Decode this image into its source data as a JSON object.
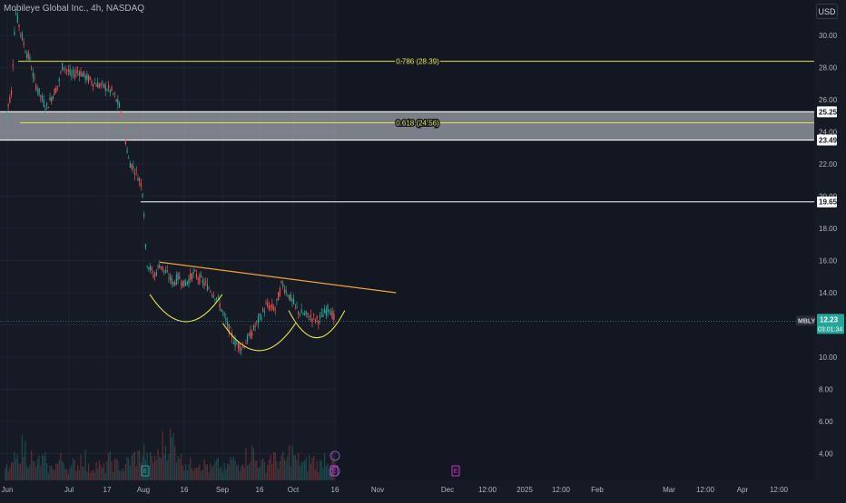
{
  "header": {
    "title": "Mobileye Global Inc., 4h, NASDAQ",
    "currency": "USD"
  },
  "theme": {
    "background": "#161a25",
    "grid": "#1f2330",
    "axis_text": "#b2b5be",
    "up": "#26a69a",
    "down": "#ef5350",
    "fib": "#e6e34a",
    "resistance": "#ffffff",
    "trendline": "#f0a43a",
    "pattern_arc": "#e6e34a",
    "event_marker": "#cc33cc",
    "price_badge": "#26a69a"
  },
  "chart_data": {
    "type": "candlestick",
    "ylim": [
      3,
      33
    ],
    "y_ticks": [
      4,
      6,
      8,
      10,
      12,
      14,
      16,
      18,
      20,
      22,
      24,
      26,
      28,
      30
    ],
    "y_tick_labels": [
      "4.00",
      "6.00",
      "8.00",
      "10.00",
      "12.00",
      "14.00",
      "16.00",
      "18.00",
      "20.00",
      "22.00",
      "24.00",
      "26.00",
      "28.00",
      "30.00"
    ],
    "x_labels": [
      "Jun",
      "Jul",
      "17",
      "Aug",
      "16",
      "Sep",
      "16",
      "Oct",
      "16",
      "Nov",
      "Dec",
      "12:00",
      "2025",
      "12:00",
      "Feb",
      "Mar",
      "12:00",
      "Apr",
      "12:00"
    ],
    "price_path": [
      {
        "date": "2024-05-31",
        "price": 24.8
      },
      {
        "date": "2024-06-03",
        "price": 26.5
      },
      {
        "date": "2024-06-05",
        "price": 31.5
      },
      {
        "date": "2024-06-07",
        "price": 30.5
      },
      {
        "date": "2024-06-10",
        "price": 29.0
      },
      {
        "date": "2024-06-12",
        "price": 28.5
      },
      {
        "date": "2024-06-14",
        "price": 27.2
      },
      {
        "date": "2024-06-18",
        "price": 26.0
      },
      {
        "date": "2024-06-20",
        "price": 25.5
      },
      {
        "date": "2024-06-24",
        "price": 26.5
      },
      {
        "date": "2024-06-26",
        "price": 27.0
      },
      {
        "date": "2024-06-28",
        "price": 28.2
      },
      {
        "date": "2024-07-02",
        "price": 27.5
      },
      {
        "date": "2024-07-05",
        "price": 27.8
      },
      {
        "date": "2024-07-09",
        "price": 27.3
      },
      {
        "date": "2024-07-12",
        "price": 27.0
      },
      {
        "date": "2024-07-16",
        "price": 26.8
      },
      {
        "date": "2024-07-19",
        "price": 26.5
      },
      {
        "date": "2024-07-22",
        "price": 25.6
      },
      {
        "date": "2024-07-24",
        "price": 24.0
      },
      {
        "date": "2024-07-26",
        "price": 22.2
      },
      {
        "date": "2024-07-29",
        "price": 21.5
      },
      {
        "date": "2024-07-31",
        "price": 20.8
      },
      {
        "date": "2024-08-01",
        "price": 20.0
      },
      {
        "date": "2024-08-02",
        "price": 16.0
      },
      {
        "date": "2024-08-05",
        "price": 15.0
      },
      {
        "date": "2024-08-07",
        "price": 15.8
      },
      {
        "date": "2024-08-09",
        "price": 15.3
      },
      {
        "date": "2024-08-12",
        "price": 14.6
      },
      {
        "date": "2024-08-14",
        "price": 15.0
      },
      {
        "date": "2024-08-16",
        "price": 14.5
      },
      {
        "date": "2024-08-20",
        "price": 15.2
      },
      {
        "date": "2024-08-23",
        "price": 14.8
      },
      {
        "date": "2024-08-27",
        "price": 14.2
      },
      {
        "date": "2024-08-30",
        "price": 13.6
      },
      {
        "date": "2024-09-03",
        "price": 12.0
      },
      {
        "date": "2024-09-06",
        "price": 10.9
      },
      {
        "date": "2024-09-09",
        "price": 10.6
      },
      {
        "date": "2024-09-12",
        "price": 11.3
      },
      {
        "date": "2024-09-16",
        "price": 12.4
      },
      {
        "date": "2024-09-19",
        "price": 13.2
      },
      {
        "date": "2024-09-23",
        "price": 13.0
      },
      {
        "date": "2024-09-26",
        "price": 14.6
      },
      {
        "date": "2024-09-30",
        "price": 13.6
      },
      {
        "date": "2024-10-03",
        "price": 12.8
      },
      {
        "date": "2024-10-07",
        "price": 12.5
      },
      {
        "date": "2024-10-10",
        "price": 12.3
      },
      {
        "date": "2024-10-14",
        "price": 13.1
      },
      {
        "date": "2024-10-16",
        "price": 12.23
      }
    ],
    "volume_relative": [
      0.3,
      0.5,
      0.8,
      0.6,
      0.4,
      0.5,
      0.3,
      0.4,
      0.5,
      0.3,
      0.4,
      0.6,
      0.3,
      0.4,
      0.3,
      0.5,
      0.4,
      0.3,
      0.5,
      0.6,
      0.7,
      0.5,
      0.6,
      0.9,
      1.0,
      0.8,
      0.5,
      0.4,
      0.5,
      0.4,
      0.3,
      0.4,
      0.3,
      0.5,
      0.4,
      0.6,
      0.7,
      0.5,
      0.4,
      0.6,
      0.5,
      0.5,
      0.7,
      0.5,
      0.4,
      0.5,
      0.4,
      0.6,
      0.5
    ],
    "fib_levels": [
      {
        "ratio": "0.786",
        "price": 28.39,
        "label": "0.786 (28.39)"
      },
      {
        "ratio": "0.618",
        "price": 24.56,
        "label": "0.618 (24.56)"
      }
    ],
    "resistance_zone": {
      "low": 23.49,
      "high": 25.25,
      "low_label": "23.49",
      "high_label": "25.25"
    },
    "resistance_line": {
      "price": 19.65,
      "label": "19.65"
    },
    "trendline": [
      {
        "date": "2024-08-07",
        "price": 15.9
      },
      {
        "date": "2024-11-05",
        "price": 14.0
      }
    ],
    "pattern_arcs": [
      {
        "from": "2024-08-05",
        "to": "2024-08-30",
        "bottom": 12.0
      },
      {
        "from": "2024-09-03",
        "to": "2024-09-30",
        "bottom": 10.2
      },
      {
        "from": "2024-10-01",
        "to": "2024-10-18",
        "bottom": 11.0
      }
    ],
    "last_price": {
      "symbol": "MBLY",
      "value": "12.23",
      "countdown": "03:01:34"
    },
    "events": [
      {
        "date": "2024-08-01",
        "label": "E"
      },
      {
        "date": "2024-10-24",
        "label": "E"
      },
      {
        "date": "2024-12-05",
        "label": "E"
      }
    ]
  }
}
